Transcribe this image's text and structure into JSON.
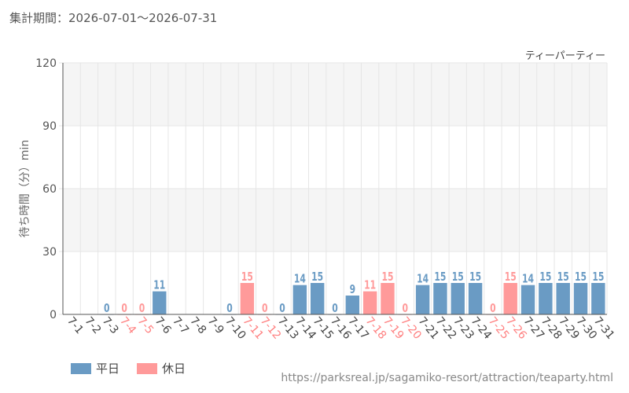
{
  "header": {
    "period_label": "集計期間：2026-07-01～2026-07-31"
  },
  "footer": {
    "source_url": "https://parksreal.jp/sagamiko-resort/attraction/teaparty.html"
  },
  "colors": {
    "weekday": "#6a9bc4",
    "holiday": "#ff9a9a",
    "grid": "#e6e6e6",
    "band": "#f5f5f5"
  },
  "chart_data": {
    "type": "bar",
    "title": "ティーパーティー",
    "ylabel": "待ち時間（分）min",
    "ylim": [
      0,
      120
    ],
    "yticks": [
      0,
      30,
      60,
      90,
      120
    ],
    "legend": [
      {
        "name": "平日",
        "kind": "weekday"
      },
      {
        "name": "休日",
        "kind": "holiday"
      }
    ],
    "legend_position": "bottom-left",
    "categories": [
      "7-1",
      "7-2",
      "7-3",
      "7-4",
      "7-5",
      "7-6",
      "7-7",
      "7-8",
      "7-9",
      "7-10",
      "7-11",
      "7-12",
      "7-13",
      "7-14",
      "7-15",
      "7-16",
      "7-17",
      "7-18",
      "7-19",
      "7-20",
      "7-21",
      "7-22",
      "7-23",
      "7-24",
      "7-25",
      "7-26",
      "7-27",
      "7-28",
      "7-29",
      "7-30",
      "7-31"
    ],
    "values": [
      null,
      null,
      0,
      0,
      0,
      11,
      null,
      null,
      null,
      0,
      15,
      0,
      0,
      14,
      15,
      0,
      9,
      11,
      15,
      0,
      14,
      15,
      15,
      15,
      0,
      15,
      14,
      15,
      15,
      15,
      15
    ],
    "day_type": [
      "weekday",
      "weekday",
      "weekday",
      "holiday",
      "holiday",
      "weekday",
      "weekday",
      "weekday",
      "weekday",
      "weekday",
      "holiday",
      "holiday",
      "weekday",
      "weekday",
      "weekday",
      "weekday",
      "weekday",
      "holiday",
      "holiday",
      "holiday",
      "weekday",
      "weekday",
      "weekday",
      "weekday",
      "holiday",
      "holiday",
      "weekday",
      "weekday",
      "weekday",
      "weekday",
      "weekday"
    ]
  }
}
